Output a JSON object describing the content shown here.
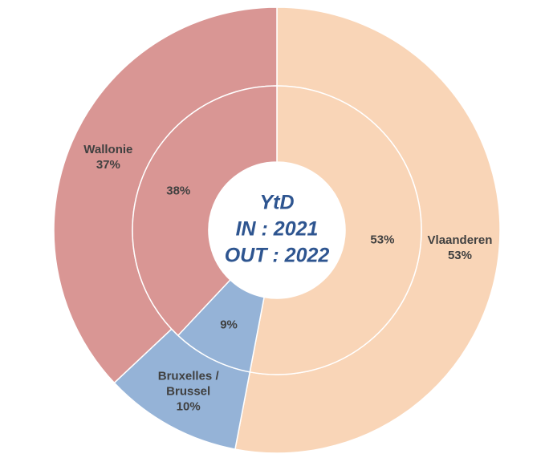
{
  "chart_data": {
    "type": "donut",
    "center_text": [
      "YtD",
      "IN : 2021",
      "OUT : 2022"
    ],
    "categories": [
      "Vlaanderen",
      "Bruxelles / Brussel",
      "Wallonie"
    ],
    "colors": [
      "#f9d5b7",
      "#95b3d7",
      "#d99694"
    ],
    "series": [
      {
        "values": [
          53,
          10,
          37
        ],
        "value_labels": [
          "53%",
          "10%",
          "37%"
        ]
      },
      {
        "values": [
          53,
          9,
          38
        ],
        "value_labels": [
          "53%",
          "9%",
          "38%"
        ]
      }
    ]
  }
}
